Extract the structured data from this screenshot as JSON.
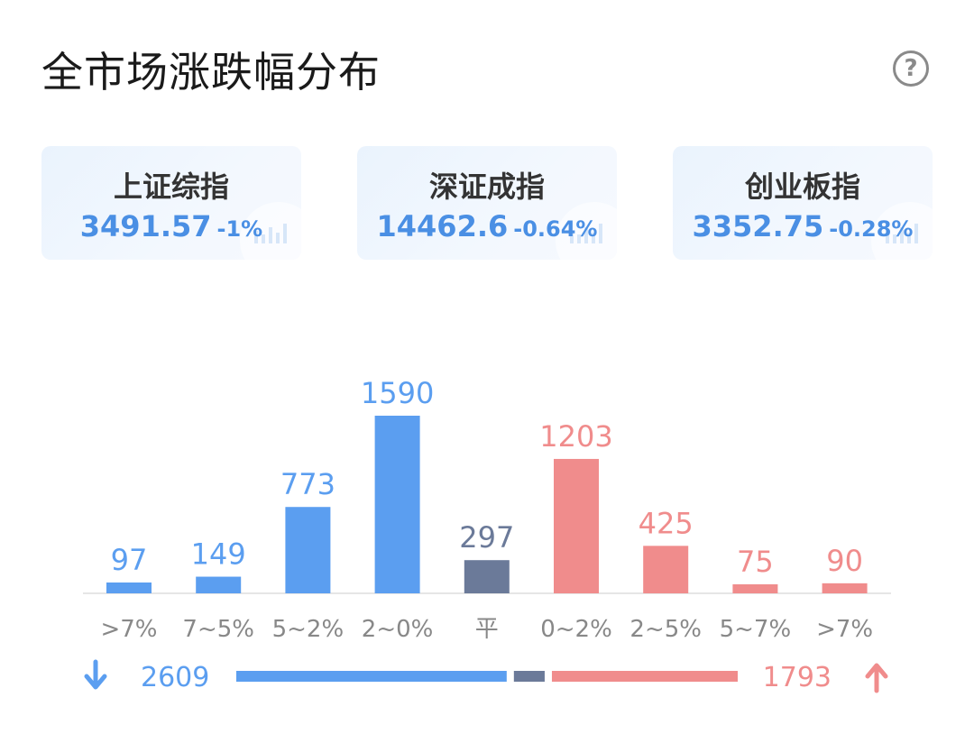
{
  "header": {
    "title": "全市场涨跌幅分布"
  },
  "icons": {
    "help": "help-circle-icon",
    "watermark": "trend-chart-icon",
    "down": "arrow-down-icon",
    "up": "arrow-up-icon"
  },
  "indices": [
    {
      "name": "上证综指",
      "value": "3491.57",
      "change": "-1%"
    },
    {
      "name": "深证成指",
      "value": "14462.6",
      "change": "-0.64%"
    },
    {
      "name": "创业板指",
      "value": "3352.75",
      "change": "-0.28%"
    }
  ],
  "colors": {
    "down": "#5b9ef0",
    "up": "#f08c8c",
    "flat": "#6b7a99",
    "index_text": "#4a8fe4"
  },
  "chart_data": {
    "type": "bar",
    "categories": [
      ">7%",
      "7~5%",
      "5~2%",
      "2~0%",
      "平",
      "0~2%",
      "2~5%",
      "5~7%",
      ">7%"
    ],
    "values": [
      97,
      149,
      773,
      1590,
      297,
      1203,
      425,
      75,
      90
    ],
    "groups": [
      "down",
      "down",
      "down",
      "down",
      "flat",
      "up",
      "up",
      "up",
      "up"
    ],
    "title": "全市场涨跌幅分布",
    "xlabel": "",
    "ylabel": "",
    "grid": false,
    "legend": "none"
  },
  "summary": {
    "down_total": "2609",
    "up_total": "1793",
    "flat_total": 297
  }
}
